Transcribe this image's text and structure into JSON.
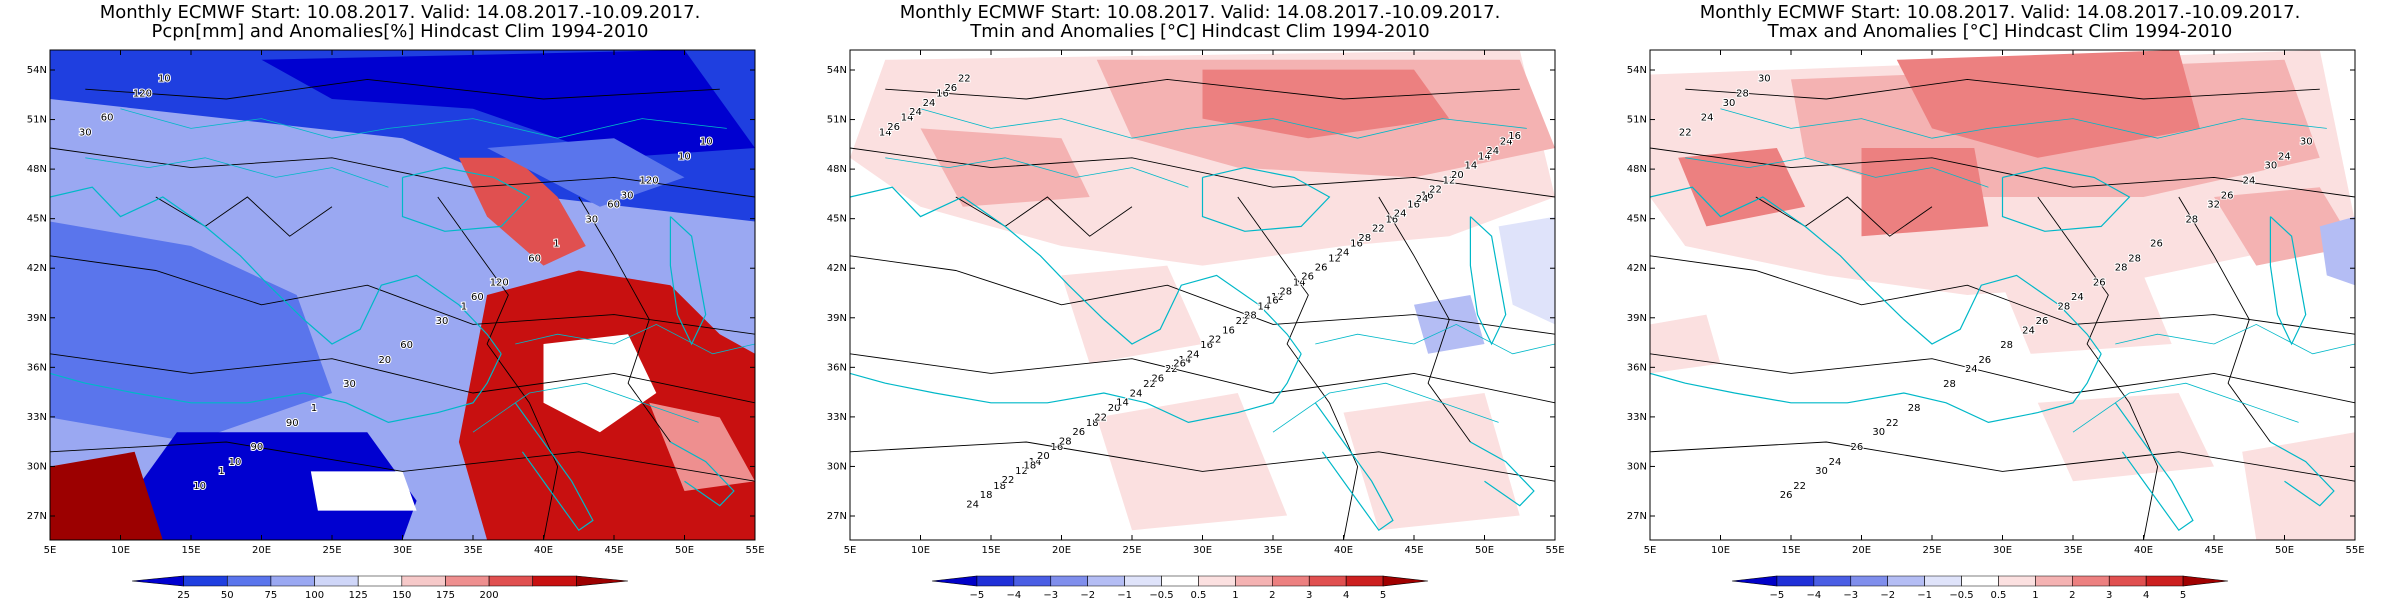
{
  "panels": [
    {
      "id": "pcpn",
      "title_line1": "Monthly ECMWF Start: 10.08.2017. Valid: 14.08.2017.-10.09.2017.",
      "title_line2": "Pcpn[mm] and Anomalies[%] Hindcast Clim 1994-2010",
      "colorbar_labels": [
        "25",
        "50",
        "75",
        "100",
        "125",
        "150",
        "175",
        "200"
      ],
      "colorbar_colors": [
        "#0000d0",
        "#1f3fe0",
        "#5a75ec",
        "#9aa8f2",
        "#cfd6f8",
        "#ffffff",
        "#f6c9c9",
        "#ee8f8f",
        "#e05050",
        "#c81010",
        "#9c0000"
      ],
      "contour_labels": [
        "30",
        "60",
        "10",
        "30",
        "20",
        "120",
        "60",
        "90",
        "10",
        "30",
        "10",
        "30",
        "30",
        "60",
        "120",
        "90",
        "120",
        "60",
        "10",
        "1",
        "1",
        "10",
        "1",
        "1",
        "60"
      ]
    },
    {
      "id": "tmin",
      "title_line1": "Monthly ECMWF Start: 10.08.2017. Valid: 14.08.2017.-10.09.2017.",
      "title_line2": "Tmin and Anomalies [°C] Hindcast Clim 1994-2010",
      "colorbar_labels": [
        "−5",
        "−4",
        "−3",
        "−2",
        "−1",
        "−0.5",
        "0.5",
        "1",
        "2",
        "3",
        "4",
        "5"
      ],
      "colorbar_colors": [
        "#0000c8",
        "#2030d8",
        "#4a5ee4",
        "#7f8eec",
        "#b4bdf4",
        "#dfe3fa",
        "#ffffff",
        "#fbe0e0",
        "#f4b2b2",
        "#ec8080",
        "#e05050",
        "#cc2020",
        "#a00000"
      ],
      "contour_labels": [
        "14",
        "12",
        "14",
        "16",
        "14",
        "16",
        "12",
        "18",
        "14",
        "22",
        "18",
        "16",
        "22",
        "14",
        "14",
        "16",
        "12",
        "16",
        "22",
        "16",
        "20",
        "24",
        "14",
        "12",
        "16",
        "22",
        "24",
        "26",
        "26",
        "14",
        "16",
        "18",
        "22",
        "24",
        "26",
        "28",
        "20",
        "22",
        "24",
        "26",
        "24",
        "22",
        "24",
        "28",
        "22",
        "24",
        "26",
        "24",
        "26",
        "28",
        "20",
        "22",
        "24",
        "28",
        "14",
        "16",
        "16",
        "18",
        "24",
        "26"
      ]
    },
    {
      "id": "tmax",
      "title_line1": "Monthly ECMWF Start: 10.08.2017. Valid: 14.08.2017.-10.09.2017.",
      "title_line2": "Tmax and Anomalies [°C] Hindcast Clim 1994-2010",
      "colorbar_labels": [
        "−5",
        "−4",
        "−3",
        "−2",
        "−1",
        "−0.5",
        "0.5",
        "1",
        "2",
        "3",
        "4",
        "5"
      ],
      "colorbar_colors": [
        "#0000c8",
        "#2030d8",
        "#4a5ee4",
        "#7f8eec",
        "#b4bdf4",
        "#dfe3fa",
        "#ffffff",
        "#fbe0e0",
        "#f4b2b2",
        "#ec8080",
        "#e05050",
        "#cc2020",
        "#a00000"
      ],
      "contour_labels": [
        "22",
        "24",
        "24",
        "26",
        "26",
        "28",
        "28",
        "22",
        "24",
        "26",
        "22",
        "28",
        "28",
        "24",
        "26",
        "26",
        "24",
        "28",
        "30",
        "26",
        "28",
        "30",
        "28",
        "30",
        "32",
        "24",
        "30",
        "28",
        "30",
        "30",
        "24",
        "26"
      ]
    }
  ],
  "lat_labels": [
    "54N",
    "51N",
    "48N",
    "45N",
    "42N",
    "39N",
    "36N",
    "33N",
    "30N",
    "27N"
  ],
  "lon_labels": [
    "5E",
    "10E",
    "15E",
    "20E",
    "25E",
    "30E",
    "35E",
    "40E",
    "45E",
    "50E",
    "55E"
  ]
}
